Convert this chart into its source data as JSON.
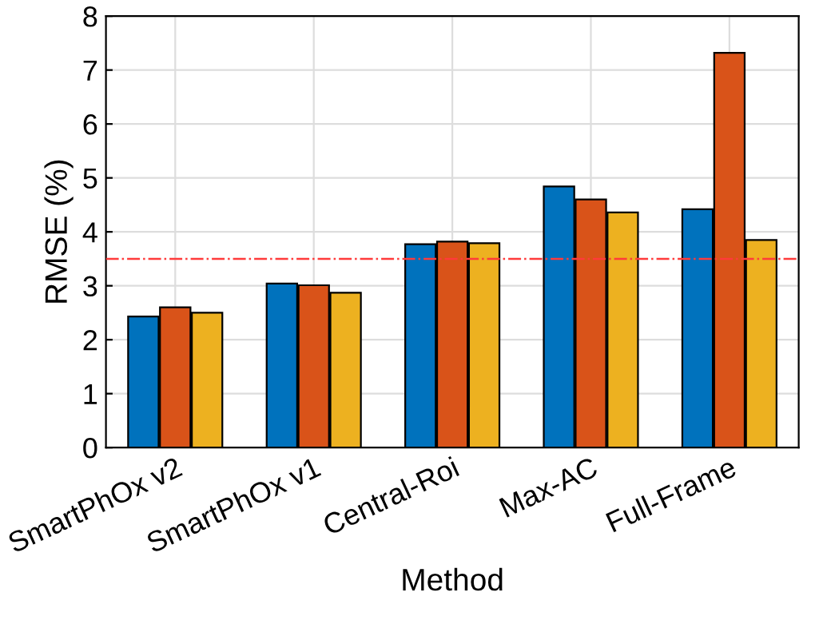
{
  "chart_data": {
    "type": "bar",
    "xlabel": "Method",
    "ylabel": "RMSE (%)",
    "categories": [
      "SmartPhOx v2",
      "SmartPhOx v1",
      "Central-Roi",
      "Max-AC",
      "Full-Frame"
    ],
    "series": [
      {
        "color": "#0072bd",
        "values": [
          2.43,
          3.04,
          3.77,
          4.84,
          4.42
        ]
      },
      {
        "color": "#d95319",
        "values": [
          2.6,
          3.01,
          3.82,
          4.6,
          7.32
        ]
      },
      {
        "color": "#edb120",
        "values": [
          2.5,
          2.87,
          3.79,
          4.36,
          3.85
        ]
      }
    ],
    "ylim": [
      0,
      8
    ],
    "yticks": [
      0,
      1,
      2,
      3,
      4,
      5,
      6,
      7,
      8
    ],
    "ref_lines": [
      {
        "axis": "y",
        "value": 3.5,
        "color": "#ff3b3b",
        "line_style": "dashdot"
      }
    ],
    "grid": true
  }
}
